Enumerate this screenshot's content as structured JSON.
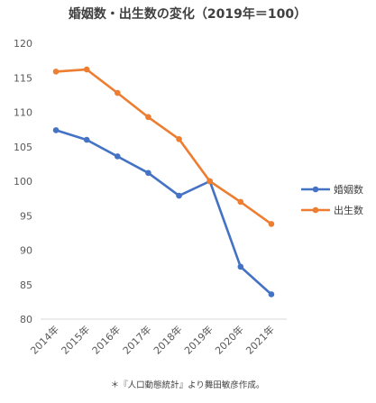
{
  "chart_data": {
    "type": "line",
    "title": "婚姻数・出生数の変化（2019年＝100）",
    "categories": [
      "2014年",
      "2015年",
      "2016年",
      "2017年",
      "2018年",
      "2019年",
      "2020年",
      "2021年"
    ],
    "ylim": [
      80,
      120
    ],
    "yticks": [
      80,
      85,
      90,
      95,
      100,
      105,
      110,
      115,
      120
    ],
    "grid": false,
    "legend_position": "right",
    "series": [
      {
        "name": "婚姻数",
        "color": "#4472C4",
        "values": [
          107.4,
          106.0,
          103.6,
          101.2,
          97.9,
          100.0,
          87.6,
          83.6
        ]
      },
      {
        "name": "出生数",
        "color": "#ED7D31",
        "values": [
          115.9,
          116.2,
          112.8,
          109.3,
          106.1,
          100.0,
          97.0,
          93.8
        ]
      }
    ],
    "note": "＊『人口動態統計』より舞田敏彦作成。"
  }
}
